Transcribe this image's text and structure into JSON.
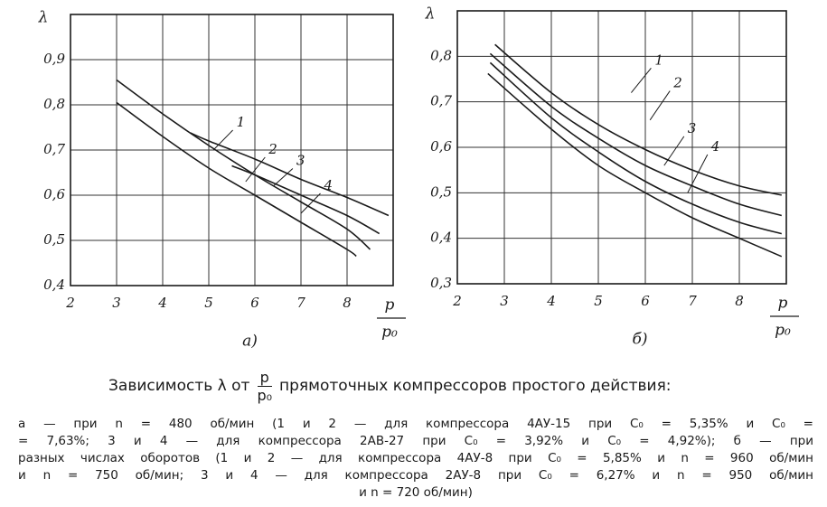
{
  "chart_data": [
    {
      "type": "line",
      "subcaption": "а)",
      "y_label": "λ",
      "x_label": {
        "numerator": "p",
        "denominator": "p₀"
      },
      "xlim": [
        2,
        9
      ],
      "ylim": [
        0.4,
        1.0
      ],
      "grid": true,
      "xticks": [
        2,
        3,
        4,
        5,
        6,
        7,
        8
      ],
      "yticks": [
        {
          "value": 0.4,
          "label": "0,4"
        },
        {
          "value": 0.5,
          "label": "0,5"
        },
        {
          "value": 0.6,
          "label": "0,6"
        },
        {
          "value": 0.7,
          "label": "0,7"
        },
        {
          "value": 0.8,
          "label": "0,8"
        },
        {
          "value": 0.9,
          "label": "0,9"
        }
      ],
      "series": [
        {
          "name": "1",
          "color": "#1a1a1a",
          "x": [
            4.6,
            5,
            6,
            7,
            8,
            8.9
          ],
          "values": [
            0.738,
            0.72,
            0.68,
            0.635,
            0.595,
            0.555
          ]
        },
        {
          "name": "2",
          "color": "#1a1a1a",
          "x": [
            5.5,
            6,
            7,
            8,
            8.7
          ],
          "values": [
            0.665,
            0.645,
            0.6,
            0.555,
            0.515
          ]
        },
        {
          "name": "3",
          "color": "#1a1a1a",
          "x": [
            3,
            4,
            5,
            6,
            7,
            8,
            8.5
          ],
          "values": [
            0.855,
            0.78,
            0.71,
            0.645,
            0.585,
            0.525,
            0.48
          ]
        },
        {
          "name": "4",
          "color": "#1a1a1a",
          "x": [
            3,
            4,
            5,
            6,
            7,
            8,
            8.2
          ],
          "values": [
            0.805,
            0.73,
            0.66,
            0.6,
            0.54,
            0.48,
            0.465
          ]
        }
      ]
    },
    {
      "type": "line",
      "subcaption": "б)",
      "y_label": "λ",
      "x_label": {
        "numerator": "p",
        "denominator": "p₀"
      },
      "xlim": [
        2,
        9
      ],
      "ylim": [
        0.3,
        0.9
      ],
      "grid": true,
      "xticks": [
        2,
        3,
        4,
        5,
        6,
        7,
        8
      ],
      "yticks": [
        {
          "value": 0.3,
          "label": "0,3"
        },
        {
          "value": 0.4,
          "label": "0,4"
        },
        {
          "value": 0.5,
          "label": "0,5"
        },
        {
          "value": 0.6,
          "label": "0,6"
        },
        {
          "value": 0.7,
          "label": "0,7"
        },
        {
          "value": 0.8,
          "label": "0,8"
        }
      ],
      "series": [
        {
          "name": "1",
          "color": "#1a1a1a",
          "x": [
            2.8,
            4,
            5,
            6,
            7,
            8,
            8.9
          ],
          "values": [
            0.826,
            0.72,
            0.65,
            0.595,
            0.55,
            0.515,
            0.495
          ]
        },
        {
          "name": "2",
          "color": "#1a1a1a",
          "x": [
            2.7,
            4,
            5,
            6,
            7,
            8,
            8.9
          ],
          "values": [
            0.806,
            0.69,
            0.62,
            0.56,
            0.515,
            0.475,
            0.45
          ]
        },
        {
          "name": "3",
          "color": "#1a1a1a",
          "x": [
            2.7,
            4,
            5,
            6,
            7,
            8,
            8.9
          ],
          "values": [
            0.786,
            0.665,
            0.59,
            0.525,
            0.475,
            0.435,
            0.41
          ]
        },
        {
          "name": "4",
          "color": "#1a1a1a",
          "x": [
            2.65,
            4,
            5,
            6,
            7,
            8,
            8.9
          ],
          "values": [
            0.762,
            0.64,
            0.56,
            0.5,
            0.445,
            0.4,
            0.36
          ]
        }
      ]
    }
  ],
  "caption": {
    "before": "Зависимость λ от",
    "numerator": "p",
    "denominator": "p₀",
    "after": "прямоточных компрессоров простого действия:"
  },
  "notes": [
    "а — при n = 480 об/мин (1 и 2 — для компрессора 4АУ-15 при C₀ = 5,35% и C₀ =",
    "= 7,63%; 3 и 4 — для компрессора 2АВ-27 при C₀ = 3,92% и C₀ = 4,92%); б — при",
    "разных числах оборотов (1 и 2 — для компрессора 4АУ-8 при C₀ = 5,85% и n = 960 об/мин",
    "и n = 750 об/мин; 3 и 4 — для компрессора 2АУ-8 при C₀ = 6,27% и n = 950 об/мин",
    "и n = 720 об/мин)"
  ]
}
